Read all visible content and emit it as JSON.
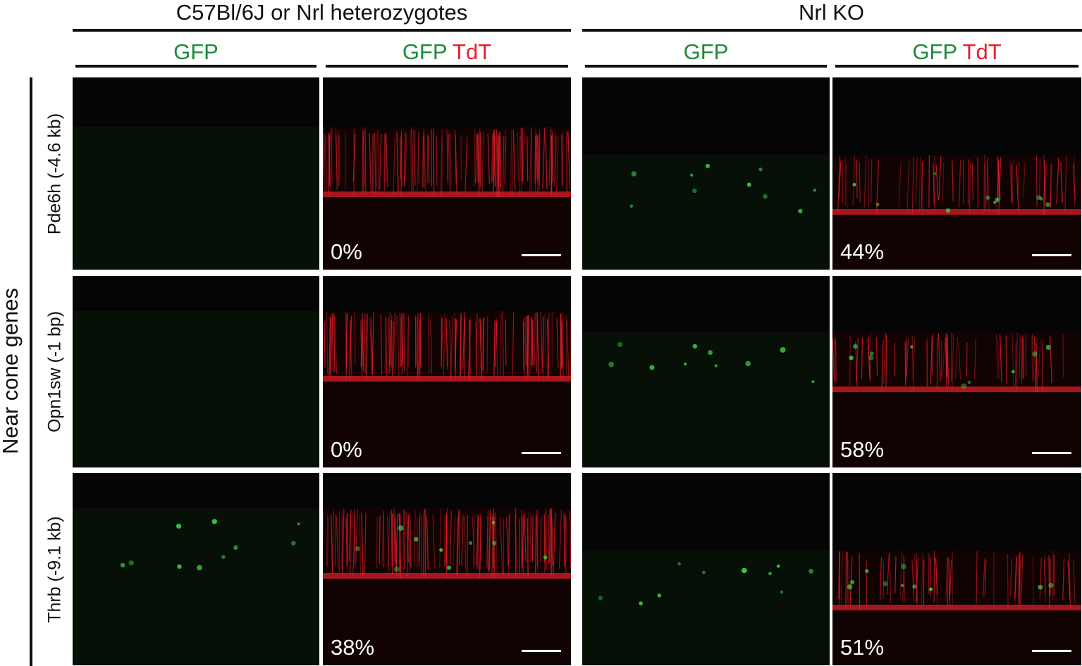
{
  "groups": [
    {
      "title": "C57Bl/6J or Nrl heterozygotes"
    },
    {
      "title": "Nrl KO"
    }
  ],
  "column_headers": [
    {
      "green": "GFP",
      "red": ""
    },
    {
      "green": "GFP",
      "red": "TdT"
    },
    {
      "green": "GFP",
      "red": ""
    },
    {
      "green": "GFP",
      "red": "TdT"
    }
  ],
  "side_label": "Near cone genes",
  "rows": [
    {
      "label": "Pde6h (-4.6 kb)",
      "wt_percent": "0%",
      "ko_percent": "44%"
    },
    {
      "label": "Opn1sw (-1 bp)",
      "wt_percent": "0%",
      "ko_percent": "58%"
    },
    {
      "label": "Thrb (-9.1 kb)",
      "wt_percent": "38%",
      "ko_percent": "51%"
    }
  ],
  "colors": {
    "gfp": "#1e8a3c",
    "tdt": "#e8202a",
    "background": "#050505"
  }
}
